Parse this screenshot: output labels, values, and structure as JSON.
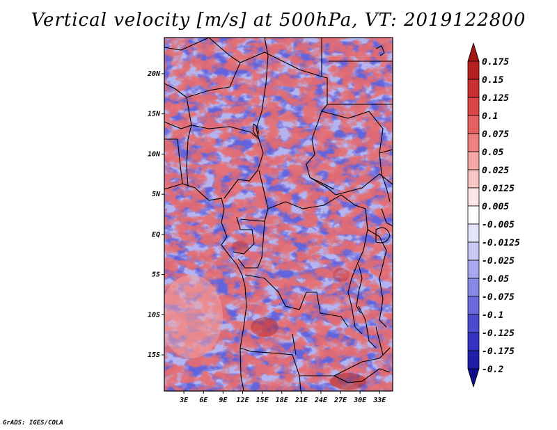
{
  "title": "Vertical velocity [m/s] at 500hPa, VT: 2019122800",
  "credit": "GrADS: IGES/COLA",
  "map": {
    "lat_labels": [
      "20N",
      "15N",
      "10N",
      "5N",
      "EQ",
      "5S",
      "10S",
      "15S"
    ],
    "lat_values": [
      20,
      15,
      10,
      5,
      0,
      -5,
      -10,
      -15
    ],
    "lon_labels": [
      "3E",
      "6E",
      "9E",
      "12E",
      "15E",
      "18E",
      "21E",
      "24E",
      "27E",
      "30E",
      "33E"
    ],
    "lon_values": [
      3,
      6,
      9,
      12,
      15,
      18,
      21,
      24,
      27,
      30,
      33
    ],
    "lat_range": [
      -19.5,
      24.5
    ],
    "lon_range": [
      0,
      35
    ],
    "field": "vertical velocity",
    "units": "m/s",
    "level": "500hPa",
    "valid_time": "2019122800"
  },
  "colorbar": {
    "labels": [
      "0.175",
      "0.15",
      "0.125",
      "0.1",
      "0.075",
      "0.05",
      "0.025",
      "0.0125",
      "0.005",
      "-0.005",
      "-0.0125",
      "-0.025",
      "-0.05",
      "-0.075",
      "-0.1",
      "-0.125",
      "-0.175",
      "-0.2"
    ],
    "colors": [
      "#a01414",
      "#b82020",
      "#cc3030",
      "#dc4646",
      "#e66060",
      "#ee8080",
      "#f6a6a6",
      "#f9c6c6",
      "#fde6e6",
      "#ffffff",
      "#e6e6fa",
      "#c8c8f5",
      "#a8a8ee",
      "#8888e6",
      "#6a6ade",
      "#4c4cd2",
      "#3232c4",
      "#1e1eaa",
      "#0e0e8c"
    ]
  }
}
